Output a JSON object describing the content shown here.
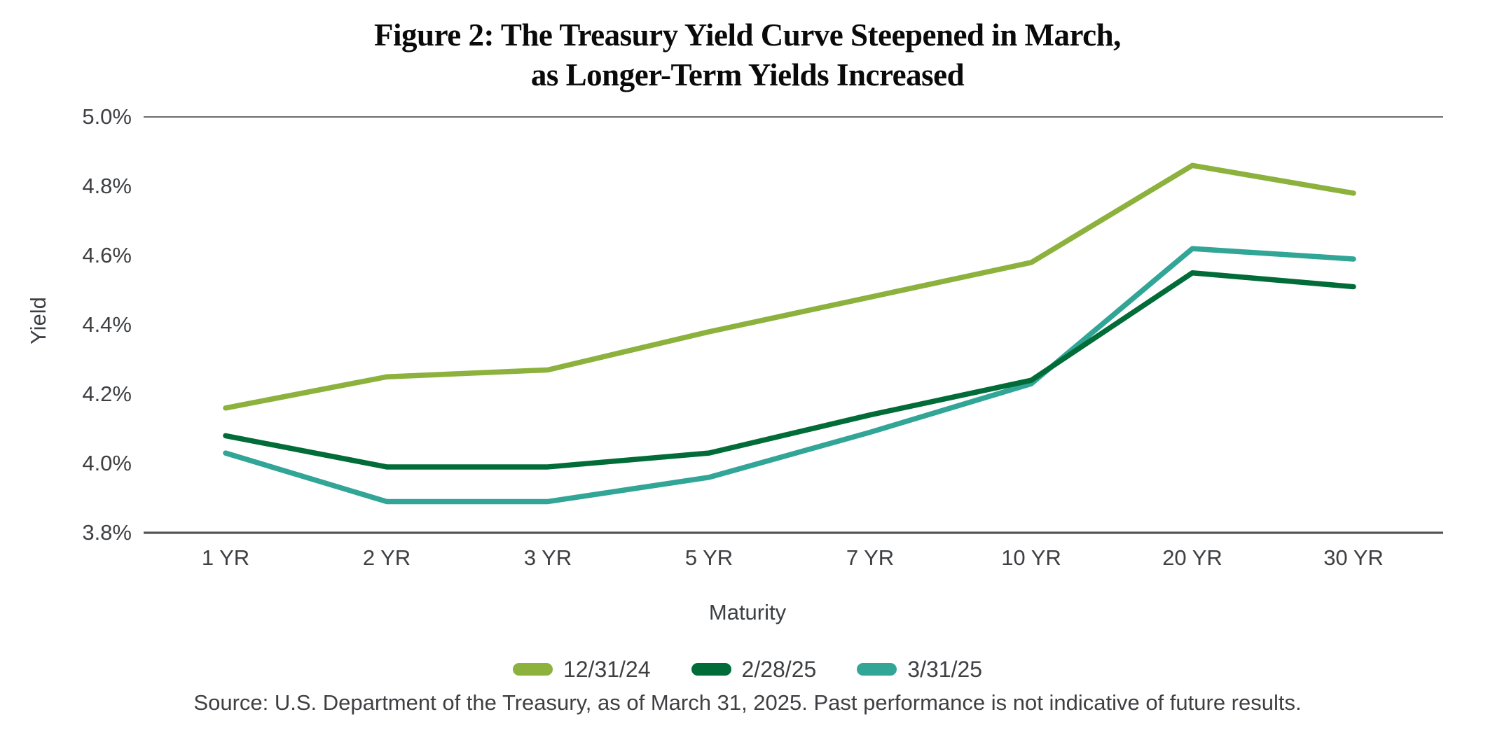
{
  "title": {
    "line1": "Figure 2: The Treasury Yield Curve Steepened in March,",
    "line2": "as Longer-Term Yields Increased"
  },
  "source_note": "Source: U.S. Department of the Treasury, as of March 31, 2025. Past performance is not indicative of future results.",
  "colors": {
    "background": "#FFFFFF",
    "text": "#3D3F42",
    "title_text": "#0A0A0A",
    "top_gridline": "#6A6C6F",
    "bottom_axis_line": "#515356",
    "series_12_31_24": "#8CB13C",
    "series_2_28_25": "#026C39",
    "series_3_31_25": "#31A596"
  },
  "chart_data": {
    "type": "line",
    "title": "Figure 2: The Treasury Yield Curve Steepened in March, as Longer-Term Yields Increased",
    "xlabel": "Maturity",
    "ylabel": "Yield",
    "categories": [
      "1 YR",
      "2 YR",
      "3 YR",
      "5 YR",
      "7 YR",
      "10 YR",
      "20 YR",
      "30 YR"
    ],
    "series": [
      {
        "name": "12/31/24",
        "color": "#8CB13C",
        "values": [
          4.16,
          4.25,
          4.27,
          4.38,
          4.48,
          4.58,
          4.86,
          4.78
        ]
      },
      {
        "name": "2/28/25",
        "color": "#026C39",
        "values": [
          4.08,
          3.99,
          3.99,
          4.03,
          4.14,
          4.24,
          4.55,
          4.51
        ]
      },
      {
        "name": "3/31/25",
        "color": "#31A596",
        "values": [
          4.03,
          3.89,
          3.89,
          3.96,
          4.09,
          4.23,
          4.62,
          4.59
        ]
      }
    ],
    "ylim": [
      3.8,
      5.0
    ],
    "y_tick_values": [
      5.0,
      4.8,
      4.6,
      4.4,
      4.2,
      4.0,
      3.8
    ],
    "y_tick_labels": [
      "5.0%",
      "4.8%",
      "4.6%",
      "4.4%",
      "4.2%",
      "4.0%",
      "3.8%"
    ],
    "unit": "%",
    "grid": "horizontal boundary lines only (at 5.0% and 3.8%)",
    "legend_position": "bottom"
  }
}
